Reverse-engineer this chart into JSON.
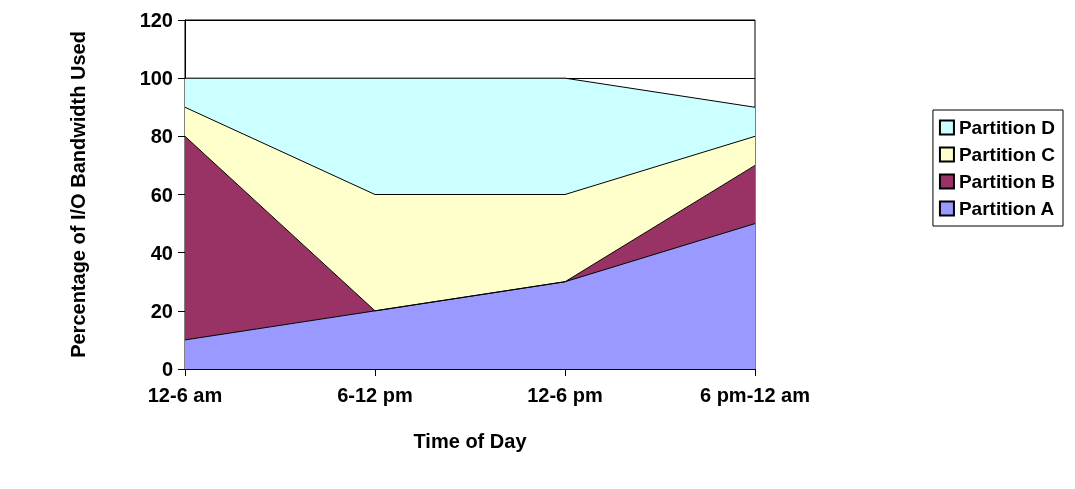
{
  "chart_data": {
    "type": "area",
    "stacked": true,
    "xlabel": "Time of Day",
    "ylabel": "Percentage of I/O Bandwidth Used",
    "categories": [
      "12-6 am",
      "6-12 pm",
      "12-6 pm",
      "6 pm-12 am"
    ],
    "series": [
      {
        "name": "Partition A",
        "color": "#9999ff",
        "values": [
          10,
          20,
          30,
          50
        ]
      },
      {
        "name": "Partition B",
        "color": "#993366",
        "values": [
          70,
          0,
          0,
          20
        ]
      },
      {
        "name": "Partition C",
        "color": "#ffffcc",
        "values": [
          10,
          40,
          30,
          10
        ]
      },
      {
        "name": "Partition D",
        "color": "#ccffff",
        "values": [
          10,
          40,
          40,
          10
        ]
      }
    ],
    "ylim": [
      0,
      120
    ],
    "yticks": [
      0,
      20,
      40,
      60,
      80,
      100,
      120
    ],
    "grid": "y",
    "legend": "right"
  }
}
